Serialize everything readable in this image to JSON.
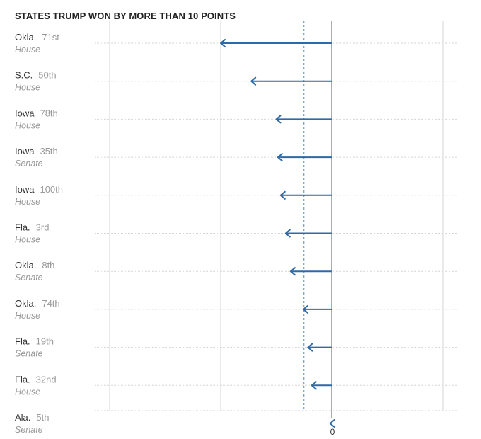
{
  "colors": {
    "arrow": "#2c6aa8",
    "gridline": "#d6d6d6",
    "zero_line": "#777777",
    "reference_line": "#4f8fc6"
  },
  "chart_data": {
    "type": "arrow",
    "title": "STATES TRUMP WON BY MORE THAN 10 POINTS",
    "direction": "leftward arrows from 0 (change in margin)",
    "xlim": [
      -40,
      20
    ],
    "zero_tick_label": "0",
    "reference_line_x": -5,
    "vertical_gridlines_x": [
      -40,
      -20,
      20
    ],
    "rows": [
      {
        "state": "Okla.",
        "district": "71st",
        "chamber": "House",
        "start": 0,
        "end": -20
      },
      {
        "state": "S.C.",
        "district": "50th",
        "chamber": "House",
        "start": 0,
        "end": -14.5
      },
      {
        "state": "Iowa",
        "district": "78th",
        "chamber": "House",
        "start": 0,
        "end": -10
      },
      {
        "state": "Iowa",
        "district": "35th",
        "chamber": "Senate",
        "start": 0,
        "end": -9.7
      },
      {
        "state": "Iowa",
        "district": "100th",
        "chamber": "House",
        "start": 0,
        "end": -9.2
      },
      {
        "state": "Fla.",
        "district": "3rd",
        "chamber": "House",
        "start": 0,
        "end": -8.3
      },
      {
        "state": "Okla.",
        "district": "8th",
        "chamber": "Senate",
        "start": 0,
        "end": -7.4
      },
      {
        "state": "Okla.",
        "district": "74th",
        "chamber": "House",
        "start": 0,
        "end": -5.1
      },
      {
        "state": "Fla.",
        "district": "19th",
        "chamber": "Senate",
        "start": 0,
        "end": -4.3
      },
      {
        "state": "Fla.",
        "district": "32nd",
        "chamber": "House",
        "start": 0,
        "end": -3.6
      },
      {
        "state": "Ala.",
        "district": "5th",
        "chamber": "Senate",
        "start": 0,
        "end": -0.3
      }
    ]
  }
}
